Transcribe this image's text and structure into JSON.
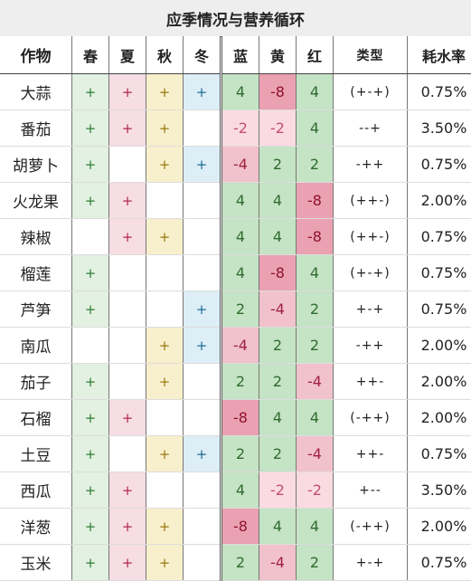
{
  "title": "应季情况与营养循环",
  "headers": [
    "作物",
    "春",
    "夏",
    "秋",
    "冬",
    "蓝",
    "黄",
    "红",
    "类型",
    "耗水率"
  ],
  "rows": [
    {
      "crop": "大蒜",
      "spring": "+",
      "summer": "+",
      "autumn": "+",
      "winter": "+",
      "blue": "4",
      "yellow": "-8",
      "red": "4",
      "type": "(+-+)",
      "rate": "0.75%"
    },
    {
      "crop": "番茄",
      "spring": "+",
      "summer": "+",
      "autumn": "+",
      "winter": "",
      "blue": "-2",
      "yellow": "-2",
      "red": "4",
      "type": "--+",
      "rate": "3.50%"
    },
    {
      "crop": "胡萝卜",
      "spring": "+",
      "summer": "",
      "autumn": "+",
      "winter": "+",
      "blue": "-4",
      "yellow": "2",
      "red": "2",
      "type": "-++",
      "rate": "0.75%"
    },
    {
      "crop": "火龙果",
      "spring": "+",
      "summer": "+",
      "autumn": "",
      "winter": "",
      "blue": "4",
      "yellow": "4",
      "red": "-8",
      "type": "(++-)",
      "rate": "2.00%"
    },
    {
      "crop": "辣椒",
      "spring": "",
      "summer": "+",
      "autumn": "+",
      "winter": "",
      "blue": "4",
      "yellow": "4",
      "red": "-8",
      "type": "(++-)",
      "rate": "0.75%"
    },
    {
      "crop": "榴莲",
      "spring": "+",
      "summer": "",
      "autumn": "",
      "winter": "",
      "blue": "4",
      "yellow": "-8",
      "red": "4",
      "type": "(+-+)",
      "rate": "0.75%"
    },
    {
      "crop": "芦笋",
      "spring": "+",
      "summer": "",
      "autumn": "",
      "winter": "+",
      "blue": "2",
      "yellow": "-4",
      "red": "2",
      "type": "+-+",
      "rate": "0.75%"
    },
    {
      "crop": "南瓜",
      "spring": "",
      "summer": "",
      "autumn": "+",
      "winter": "+",
      "blue": "-4",
      "yellow": "2",
      "red": "2",
      "type": "-++",
      "rate": "2.00%"
    },
    {
      "crop": "茄子",
      "spring": "+",
      "summer": "",
      "autumn": "+",
      "winter": "",
      "blue": "2",
      "yellow": "2",
      "red": "-4",
      "type": "++-",
      "rate": "2.00%"
    },
    {
      "crop": "石榴",
      "spring": "+",
      "summer": "+",
      "autumn": "",
      "winter": "",
      "blue": "-8",
      "yellow": "4",
      "red": "4",
      "type": "(-++)",
      "rate": "2.00%"
    },
    {
      "crop": "土豆",
      "spring": "+",
      "summer": "",
      "autumn": "+",
      "winter": "+",
      "blue": "2",
      "yellow": "2",
      "red": "-4",
      "type": "++-",
      "rate": "0.75%"
    },
    {
      "crop": "西瓜",
      "spring": "+",
      "summer": "+",
      "autumn": "",
      "winter": "",
      "blue": "4",
      "yellow": "-2",
      "red": "-2",
      "type": "+--",
      "rate": "3.50%"
    },
    {
      "crop": "洋葱",
      "spring": "+",
      "summer": "+",
      "autumn": "+",
      "winter": "",
      "blue": "-8",
      "yellow": "4",
      "red": "4",
      "type": "(-++)",
      "rate": "2.00%"
    },
    {
      "crop": "玉米",
      "spring": "+",
      "summer": "+",
      "autumn": "+",
      "winter": "",
      "blue": "2",
      "yellow": "-4",
      "red": "2",
      "type": "+-+",
      "rate": "0.75%"
    }
  ]
}
